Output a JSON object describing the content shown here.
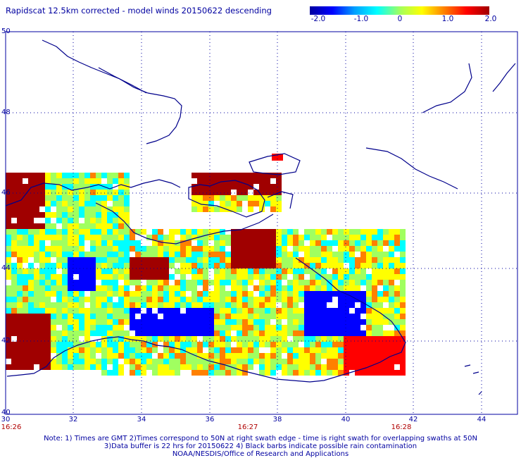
{
  "title": "Rapidscat 12.5km corrected - model winds 20150622 descending",
  "colorbar": {
    "labels": [
      "-2.0",
      "-1.0",
      "0",
      "1.0",
      "2.0"
    ],
    "stops": [
      "#0000a0",
      "#0000ff",
      "#00a0ff",
      "#00ffff",
      "#a0ff60",
      "#ffff00",
      "#ff8000",
      "#ff0000",
      "#a00000"
    ]
  },
  "lat_labels": [
    "50",
    "48",
    "46",
    "44",
    "42",
    "40"
  ],
  "lon_labels": [
    "30",
    "32",
    "34",
    "36",
    "38",
    "40",
    "42",
    "44"
  ],
  "time_labels": [
    {
      "text": "16:26",
      "lon": 30
    },
    {
      "text": "16:27",
      "lon": 37
    },
    {
      "text": "16:28",
      "lon": 41.5
    }
  ],
  "notes": [
    "Note: 1) Times are GMT 2)Times correspond to 50N at right swath edge - time is right swath for overlapping swaths at 50N",
    "3)Data buffer is 22 hrs for 20150622 4) Black barbs indicate possible rain contamination",
    "NOAA/NESDIS/Office of Research and Applications"
  ],
  "map_extent": {
    "lon": [
      30,
      45
    ],
    "lat": [
      40,
      50
    ]
  }
}
